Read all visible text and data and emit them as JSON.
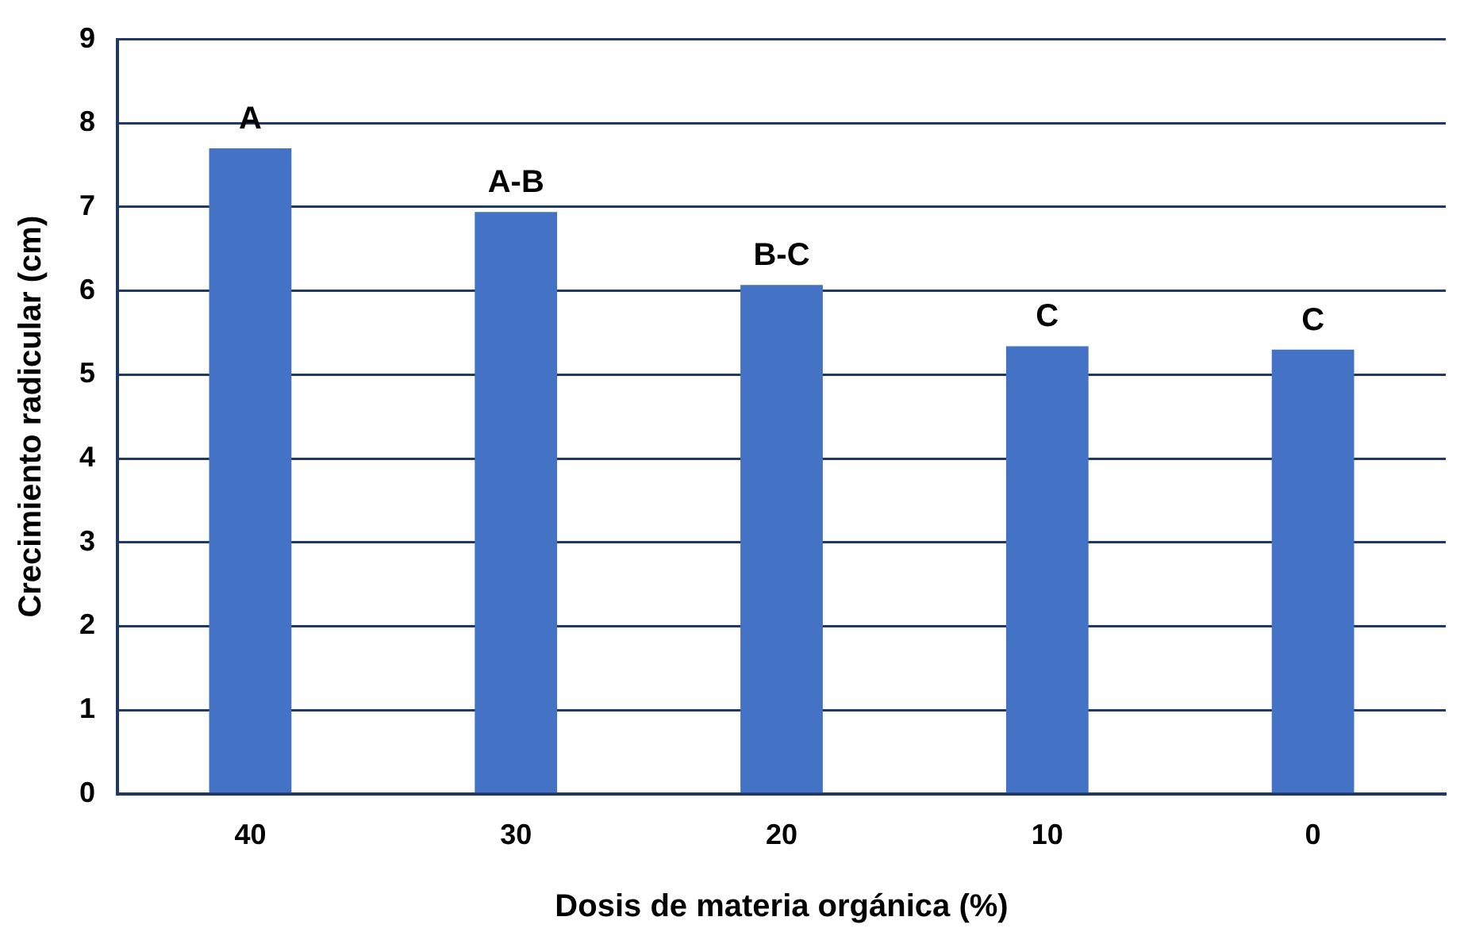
{
  "chart_data": {
    "type": "bar",
    "xlabel": "Dosis de materia orgánica (%)",
    "ylabel": "Crecimiento radicular (cm)",
    "categories": [
      "40",
      "30",
      "20",
      "10",
      "0"
    ],
    "values": [
      7.7,
      6.94,
      6.07,
      5.34,
      5.3
    ],
    "color": "#4472c4",
    "ylim": [
      0,
      9
    ],
    "yticks": [
      0,
      1,
      2,
      3,
      4,
      5,
      6,
      7,
      8,
      9
    ],
    "grid": "y",
    "legend": false,
    "annotations": [
      {
        "text": "A",
        "x": "40",
        "y": 7.7
      },
      {
        "text": "A-B",
        "x": "30",
        "y": 6.94
      },
      {
        "text": "B-C",
        "x": "20",
        "y": 6.07
      },
      {
        "text": "C",
        "x": "10",
        "y": 5.34
      },
      {
        "text": "C",
        "x": "0",
        "y": 5.3
      }
    ]
  }
}
